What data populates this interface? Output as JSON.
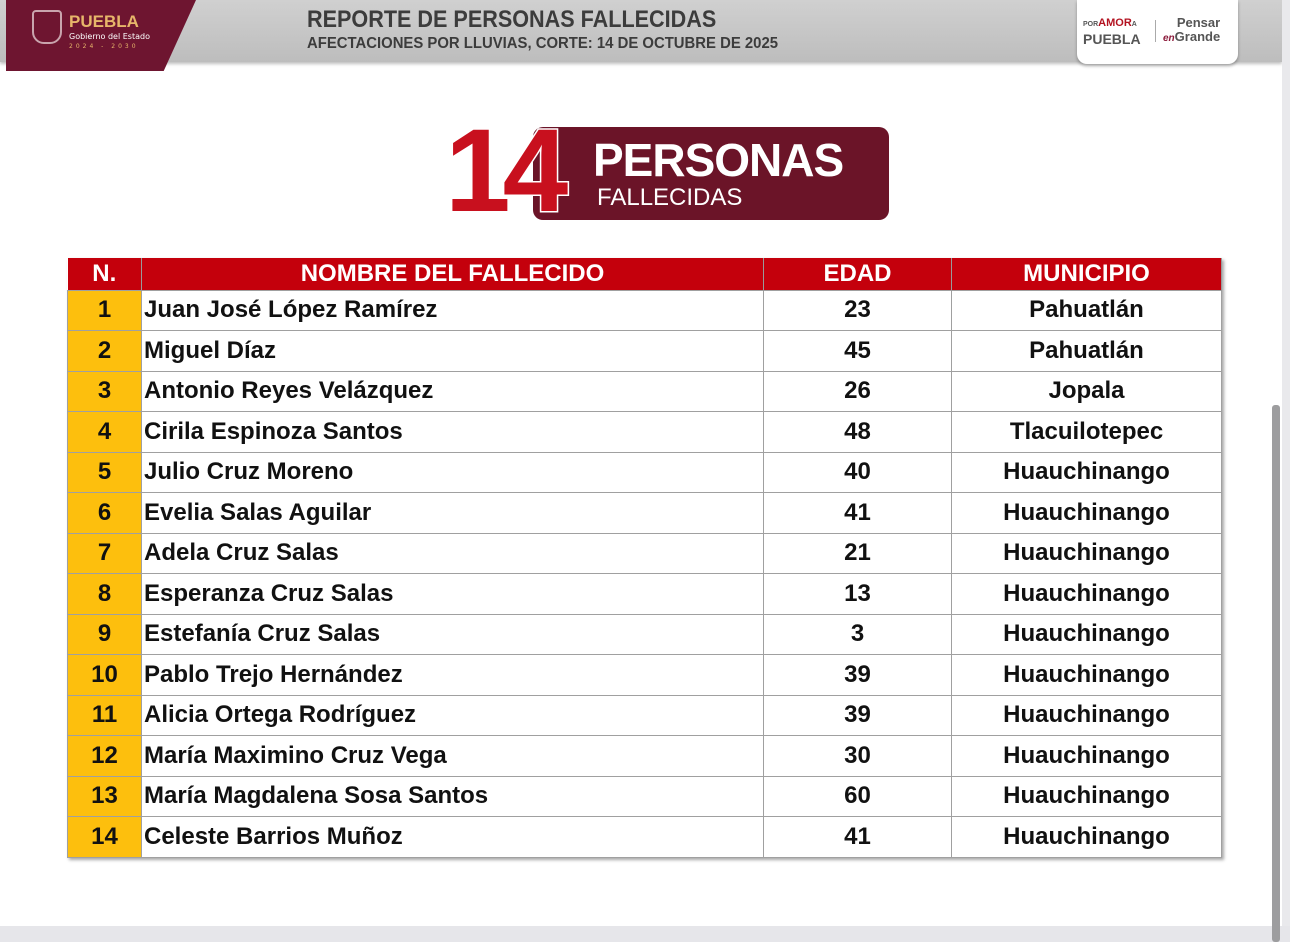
{
  "header": {
    "logo_text": "PUEBLA",
    "logo_sub": "Gobierno del Estado",
    "logo_years": "2024 - 2030",
    "title": "REPORTE DE PERSONAS FALLECIDAS",
    "subtitle": "AFECTACIONES POR LLUVIAS, CORTE: 14 DE OCTUBRE DE 2025",
    "slogan_1_small": "POR",
    "slogan_1_accent": "AMOR",
    "slogan_1_a": "A",
    "slogan_1_main": "PUEBLA",
    "slogan_2_top": "Pensar",
    "slogan_2_en": "en",
    "slogan_2_main": "Grande"
  },
  "summary": {
    "count": "14",
    "label": "PERSONAS",
    "sublabel": "FALLECIDAS"
  },
  "table": {
    "headers": [
      "N.",
      "NOMBRE DEL FALLECIDO",
      "EDAD",
      "MUNICIPIO"
    ],
    "rows": [
      {
        "n": "1",
        "name": "Juan José López Ramírez",
        "age": "23",
        "municipio": "Pahuatlán"
      },
      {
        "n": "2",
        "name": "Miguel Díaz",
        "age": "45",
        "municipio": "Pahuatlán"
      },
      {
        "n": "3",
        "name": "Antonio Reyes Velázquez",
        "age": "26",
        "municipio": "Jopala"
      },
      {
        "n": "4",
        "name": "Cirila Espinoza Santos",
        "age": "48",
        "municipio": "Tlacuilotepec"
      },
      {
        "n": "5",
        "name": "Julio Cruz Moreno",
        "age": "40",
        "municipio": "Huauchinango"
      },
      {
        "n": "6",
        "name": "Evelia Salas Aguilar",
        "age": "41",
        "municipio": "Huauchinango"
      },
      {
        "n": "7",
        "name": "Adela Cruz Salas",
        "age": "21",
        "municipio": "Huauchinango"
      },
      {
        "n": "8",
        "name": "Esperanza Cruz Salas",
        "age": "13",
        "municipio": "Huauchinango"
      },
      {
        "n": "9",
        "name": "Estefanía Cruz Salas",
        "age": "3",
        "municipio": "Huauchinango"
      },
      {
        "n": "10",
        "name": "Pablo Trejo Hernández",
        "age": "39",
        "municipio": "Huauchinango"
      },
      {
        "n": "11",
        "name": "Alicia Ortega Rodríguez",
        "age": "39",
        "municipio": "Huauchinango"
      },
      {
        "n": "12",
        "name": "María Maximino Cruz Vega",
        "age": "30",
        "municipio": "Huauchinango"
      },
      {
        "n": "13",
        "name": "María Magdalena Sosa Santos",
        "age": "60",
        "municipio": "Huauchinango"
      },
      {
        "n": "14",
        "name": "Celeste Barrios Muñoz",
        "age": "41",
        "municipio": "Huauchinango"
      }
    ]
  },
  "colors": {
    "maroon": "#6b1428",
    "red": "#c4000c",
    "yellow": "#fdbf0d"
  }
}
